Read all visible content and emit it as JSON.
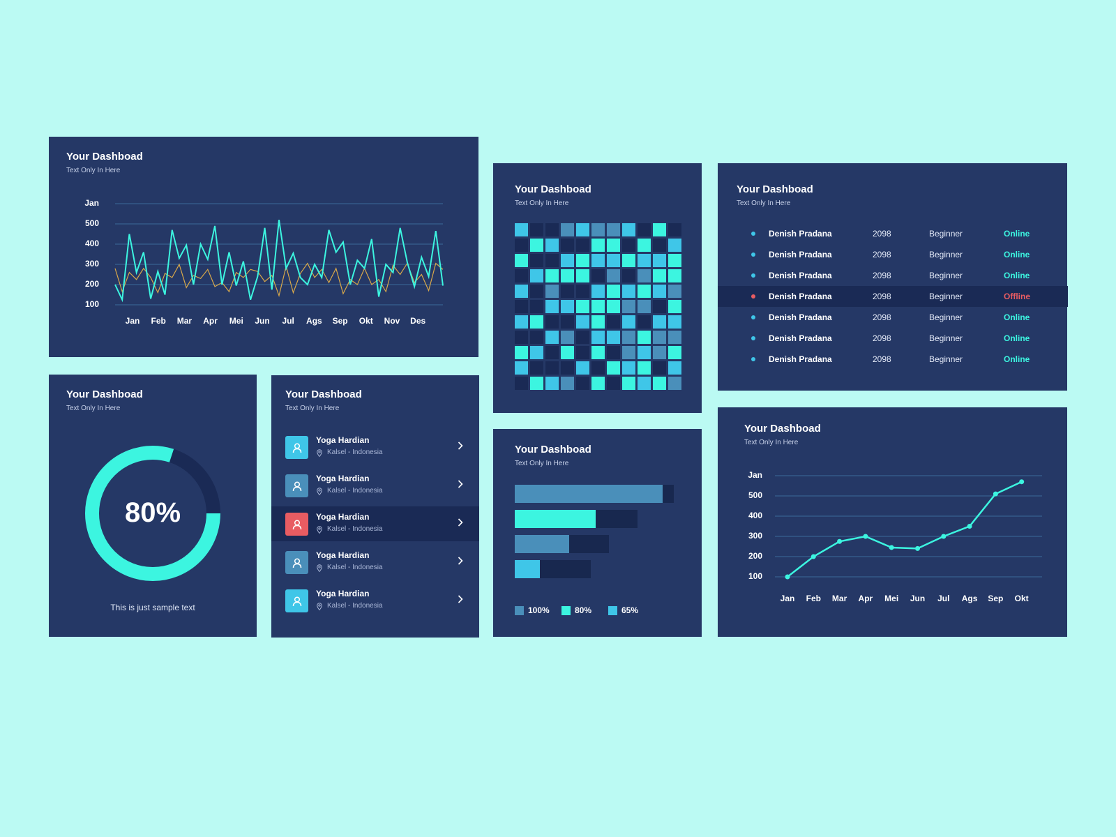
{
  "cards": {
    "common": {
      "title": "Your Dashboad",
      "subtitle": "Text Only In Here"
    }
  },
  "colors": {
    "background": "#bbfaf3",
    "card": "#253866",
    "card_dark": "#1a2a55",
    "cyan": "#3cf5e0",
    "light_blue": "#3fc6e8",
    "steel_blue": "#4a8fba",
    "red": "#e85c62",
    "orange": "#d8a84a",
    "gridline": "#3a6a9a"
  },
  "multi_line_card": {
    "title": "Your Dashboad",
    "subtitle": "Text Only In Here",
    "y_labels": [
      "Jan",
      "500",
      "400",
      "300",
      "200",
      "100"
    ],
    "x_labels": [
      "Jan",
      "Feb",
      "Mar",
      "Apr",
      "Mei",
      "Jun",
      "Jul",
      "Ags",
      "Sep",
      "Okt",
      "Nov",
      "Des"
    ]
  },
  "donut_card": {
    "title": "Your Dashboad",
    "subtitle": "Text Only In Here",
    "value": "80%",
    "caption": "This is just sample text"
  },
  "people_card": {
    "title": "Your Dashboad",
    "subtitle": "Text Only In Here",
    "items": [
      {
        "name": "Yoga Hardian",
        "location": "Kalsel - Indonesia",
        "color": "#3fc6e8",
        "active": false
      },
      {
        "name": "Yoga Hardian",
        "location": "Kalsel - Indonesia",
        "color": "#4a8fba",
        "active": false
      },
      {
        "name": "Yoga Hardian",
        "location": "Kalsel - Indonesia",
        "color": "#e85c62",
        "active": true
      },
      {
        "name": "Yoga Hardian",
        "location": "Kalsel - Indonesia",
        "color": "#4a8fba",
        "active": false
      },
      {
        "name": "Yoga Hardian",
        "location": "Kalsel - Indonesia",
        "color": "#3fc6e8",
        "active": false
      }
    ]
  },
  "heatmap_card": {
    "title": "Your Dashboad",
    "subtitle": "Text Only In Here",
    "legend": {
      "D": "#1a2a55",
      "B": "#3fc6e8",
      "S": "#4a8fba",
      "C": "#3cf5e0"
    },
    "rows": [
      "BDDSBSSBDCD",
      "DCBDDCCDCDB",
      "CDDBCBBCBBC",
      "DBCCCDSDSCC",
      "BDSDDBCBCBS",
      "DDBBCCCSSDC",
      "BCDDBCDBDBB",
      "DDBSDBBSCSS",
      "CBDCDCDSBSC",
      "BDDDBDCBCDB",
      "DCBSDCDCBCS"
    ]
  },
  "bars_card": {
    "title": "Your Dashboad",
    "subtitle": "Text Only In Here",
    "legend": [
      {
        "label": "100%",
        "color": "#4a8fba"
      },
      {
        "label": "80%",
        "color": "#3cf5e0"
      },
      {
        "label": "65%",
        "color": "#3fc6e8"
      }
    ]
  },
  "table_card": {
    "title": "Your Dashboad",
    "subtitle": "Text Only In Here",
    "rows": [
      {
        "name": "Denish Pradana",
        "number": "2098",
        "level": "Beginner",
        "status": "Online"
      },
      {
        "name": "Denish Pradana",
        "number": "2098",
        "level": "Beginner",
        "status": "Online"
      },
      {
        "name": "Denish Pradana",
        "number": "2098",
        "level": "Beginner",
        "status": "Online"
      },
      {
        "name": "Denish Pradana",
        "number": "2098",
        "level": "Beginner",
        "status": "Offline"
      },
      {
        "name": "Denish Pradana",
        "number": "2098",
        "level": "Beginner",
        "status": "Online"
      },
      {
        "name": "Denish Pradana",
        "number": "2098",
        "level": "Beginner",
        "status": "Online"
      },
      {
        "name": "Denish Pradana",
        "number": "2098",
        "level": "Beginner",
        "status": "Online"
      }
    ]
  },
  "single_line_card": {
    "title": "Your Dashboad",
    "subtitle": "Text Only In Here",
    "y_labels": [
      "Jan",
      "500",
      "400",
      "300",
      "200",
      "100"
    ],
    "x_labels": [
      "Jan",
      "Feb",
      "Mar",
      "Apr",
      "Mei",
      "Jun",
      "Jul",
      "Ags",
      "Sep",
      "Okt"
    ]
  },
  "chart_data": [
    {
      "type": "line",
      "title": "Your Dashboad",
      "subtitle": "Text Only In Here",
      "categories": [
        "Jan",
        "Feb",
        "Mar",
        "Apr",
        "Mei",
        "Jun",
        "Jul",
        "Ags",
        "Sep",
        "Okt",
        "Nov",
        "Des"
      ],
      "y_ticks": [
        "100",
        "200",
        "300",
        "400",
        "500",
        "Jan"
      ],
      "ylim": [
        100,
        600
      ],
      "grid": true,
      "series": [
        {
          "name": "cyan",
          "color": "#3cf5e0",
          "values": [
            200,
            125,
            450,
            260,
            360,
            130,
            265,
            150,
            470,
            330,
            395,
            200,
            400,
            325,
            490,
            200,
            360,
            195,
            315,
            125,
            240,
            480,
            175,
            520,
            280,
            355,
            235,
            200,
            300,
            235,
            470,
            360,
            410,
            200,
            320,
            280,
            425,
            140,
            300,
            260,
            480,
            310,
            190,
            335,
            240,
            465,
            195
          ]
        },
        {
          "name": "orange",
          "color": "#d8a84a",
          "values": [
            280,
            165,
            260,
            225,
            280,
            235,
            160,
            255,
            235,
            300,
            185,
            245,
            230,
            275,
            190,
            210,
            165,
            260,
            235,
            275,
            265,
            215,
            245,
            145,
            290,
            160,
            255,
            305,
            235,
            275,
            210,
            280,
            155,
            225,
            200,
            280,
            200,
            225,
            165,
            295,
            250,
            305,
            210,
            250,
            170,
            305,
            275
          ]
        }
      ]
    },
    {
      "type": "pie",
      "title": "Your Dashboad",
      "subtitle": "Text Only In Here",
      "categories": [
        "Filled",
        "Remaining"
      ],
      "values": [
        80,
        20
      ],
      "center_label": "80%",
      "caption": "This is just sample text"
    },
    {
      "type": "heatmap",
      "title": "Your Dashboad",
      "subtitle": "Text Only In Here",
      "rows": 11,
      "cols": 11,
      "levels": [
        "D",
        "S",
        "B",
        "C"
      ]
    },
    {
      "type": "bar",
      "orientation": "horizontal",
      "title": "Your Dashboad",
      "subtitle": "Text Only In Here",
      "bars": [
        {
          "color": "#4a8fba",
          "fill": 93,
          "track": 100
        },
        {
          "color": "#3cf5e0",
          "fill": 51,
          "track": 77
        },
        {
          "color": "#4a8fba",
          "fill": 34,
          "track": 59
        },
        {
          "color": "#3fc6e8",
          "fill": 16,
          "track": 48
        }
      ],
      "legend": [
        "100%",
        "80%",
        "65%"
      ]
    },
    {
      "type": "line",
      "title": "Your Dashboad",
      "subtitle": "Text Only In Here",
      "categories": [
        "Jan",
        "Feb",
        "Mar",
        "Apr",
        "Mei",
        "Jun",
        "Jul",
        "Ags",
        "Sep",
        "Okt"
      ],
      "y_ticks": [
        "100",
        "200",
        "300",
        "400",
        "500",
        "Jan"
      ],
      "ylim": [
        100,
        600
      ],
      "grid": true,
      "series": [
        {
          "name": "cyan",
          "color": "#3cf5e0",
          "values": [
            100,
            200,
            275,
            300,
            245,
            240,
            300,
            350,
            510,
            570
          ]
        }
      ]
    }
  ]
}
